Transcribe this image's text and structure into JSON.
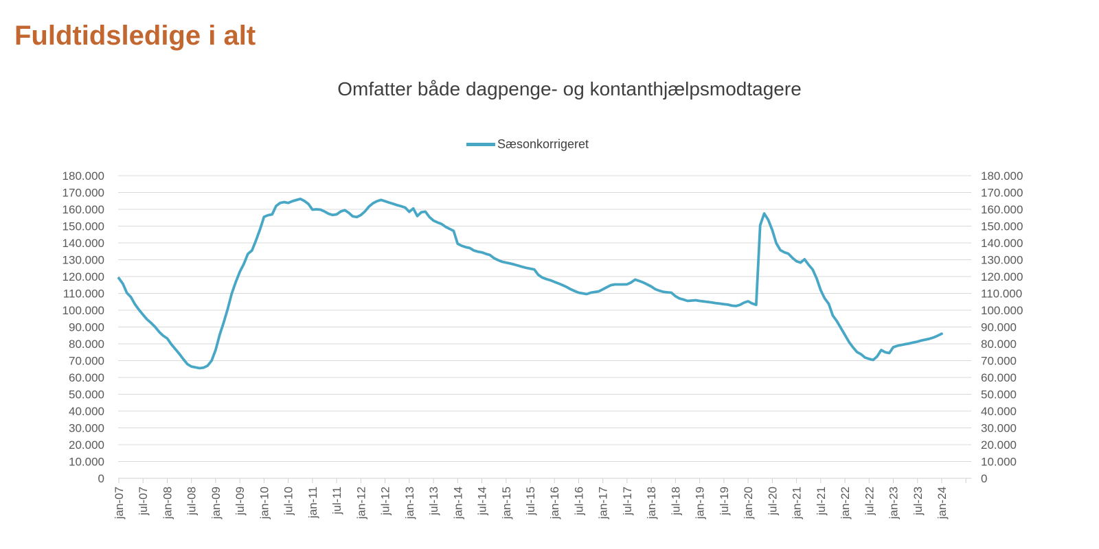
{
  "page": {
    "title": "Fuldtidsledige i alt"
  },
  "chart": {
    "subtitle": "Omfatter både dagpenge- og kontanthjælpsmodtagere",
    "legend": {
      "label": "Sæsonkorrigeret"
    }
  },
  "colors": {
    "title": "#C2672F",
    "subtitle": "#3F3F3F",
    "line": "#49A7C6",
    "gridline": "#D9D9D9",
    "axis": "#CFCFCF",
    "tick_text": "#595959"
  },
  "chart_data": {
    "type": "line",
    "title": "Omfatter både dagpenge- og kontanthjælpsmodtagere",
    "legend_position": "top",
    "grid": true,
    "frequency": "monthly",
    "x_first": "jan-07",
    "x_last": "jan-24",
    "x_tick_labels": [
      "jan-07",
      "jul-07",
      "jan-08",
      "jul-08",
      "jan-09",
      "jul-09",
      "jan-10",
      "jul-10",
      "jan-11",
      "jul-11",
      "jan-12",
      "jul-12",
      "jan-13",
      "jul-13",
      "jan-14",
      "jul-14",
      "jan-15",
      "jul-15",
      "jan-16",
      "jul-16",
      "jan-17",
      "jul-17",
      "jan-18",
      "jul-18",
      "jan-19",
      "jul-19",
      "jan-20",
      "jul-20",
      "jan-21",
      "jul-21",
      "jan-22",
      "jul-22",
      "jan-23",
      "jul-23",
      "jan-24"
    ],
    "ylim": [
      0,
      180000
    ],
    "y_tick_values": [
      0,
      10000,
      20000,
      30000,
      40000,
      50000,
      60000,
      70000,
      80000,
      90000,
      100000,
      110000,
      120000,
      130000,
      140000,
      150000,
      160000,
      170000,
      180000
    ],
    "y_tick_labels": [
      "0",
      "10.000",
      "20.000",
      "30.000",
      "40.000",
      "50.000",
      "60.000",
      "70.000",
      "80.000",
      "90.000",
      "100.000",
      "110.000",
      "120.000",
      "130.000",
      "140.000",
      "150.000",
      "160.000",
      "170.000",
      "180.000"
    ],
    "series": [
      {
        "name": "Sæsonkorrigeret",
        "color": "#49A7C6",
        "values": [
          119000,
          115700,
          110300,
          107800,
          103500,
          100200,
          97300,
          94500,
          92400,
          90000,
          87100,
          84800,
          83200,
          79800,
          76900,
          74000,
          70800,
          67900,
          66500,
          66000,
          65500,
          65800,
          67000,
          70000,
          76300,
          85300,
          92700,
          100900,
          109900,
          116800,
          122900,
          127500,
          133500,
          135500,
          141500,
          148000,
          155500,
          156500,
          157000,
          162000,
          163800,
          164300,
          163800,
          164800,
          165500,
          166200,
          165000,
          163200,
          159800,
          160000,
          159800,
          158700,
          157400,
          156600,
          157000,
          158700,
          159500,
          157900,
          155800,
          155400,
          156600,
          158700,
          161600,
          163600,
          164800,
          165600,
          164800,
          164000,
          163300,
          162500,
          161800,
          161000,
          158500,
          160500,
          156000,
          158300,
          158600,
          155400,
          153300,
          152200,
          151300,
          149600,
          148400,
          147200,
          139500,
          138300,
          137500,
          137000,
          135500,
          134800,
          134400,
          133500,
          132800,
          131000,
          129800,
          128800,
          128300,
          127800,
          127200,
          126500,
          125800,
          125200,
          124700,
          124200,
          121000,
          119400,
          118500,
          117800,
          116800,
          115900,
          114900,
          113800,
          112500,
          111400,
          110400,
          110000,
          109600,
          110400,
          110800,
          111200,
          112400,
          113700,
          114900,
          115300,
          115300,
          115300,
          115400,
          116500,
          118200,
          117400,
          116500,
          115300,
          114100,
          112500,
          111600,
          110900,
          110600,
          110400,
          108300,
          107000,
          106300,
          105500,
          105700,
          105900,
          105500,
          105200,
          104900,
          104600,
          104200,
          103900,
          103600,
          103300,
          102700,
          102500,
          103200,
          104500,
          105300,
          104000,
          103200,
          150500,
          157500,
          153700,
          147500,
          139800,
          135700,
          134400,
          133600,
          131100,
          129100,
          128300,
          130300,
          127000,
          124200,
          118800,
          111900,
          107000,
          103700,
          96800,
          93500,
          89400,
          85300,
          81200,
          77900,
          75100,
          73800,
          71800,
          71000,
          70400,
          72500,
          76300,
          75000,
          74500,
          78000,
          78800,
          79300,
          79800,
          80200,
          80800,
          81300,
          82000,
          82500,
          83000,
          83800,
          84800,
          86000
        ]
      }
    ]
  }
}
